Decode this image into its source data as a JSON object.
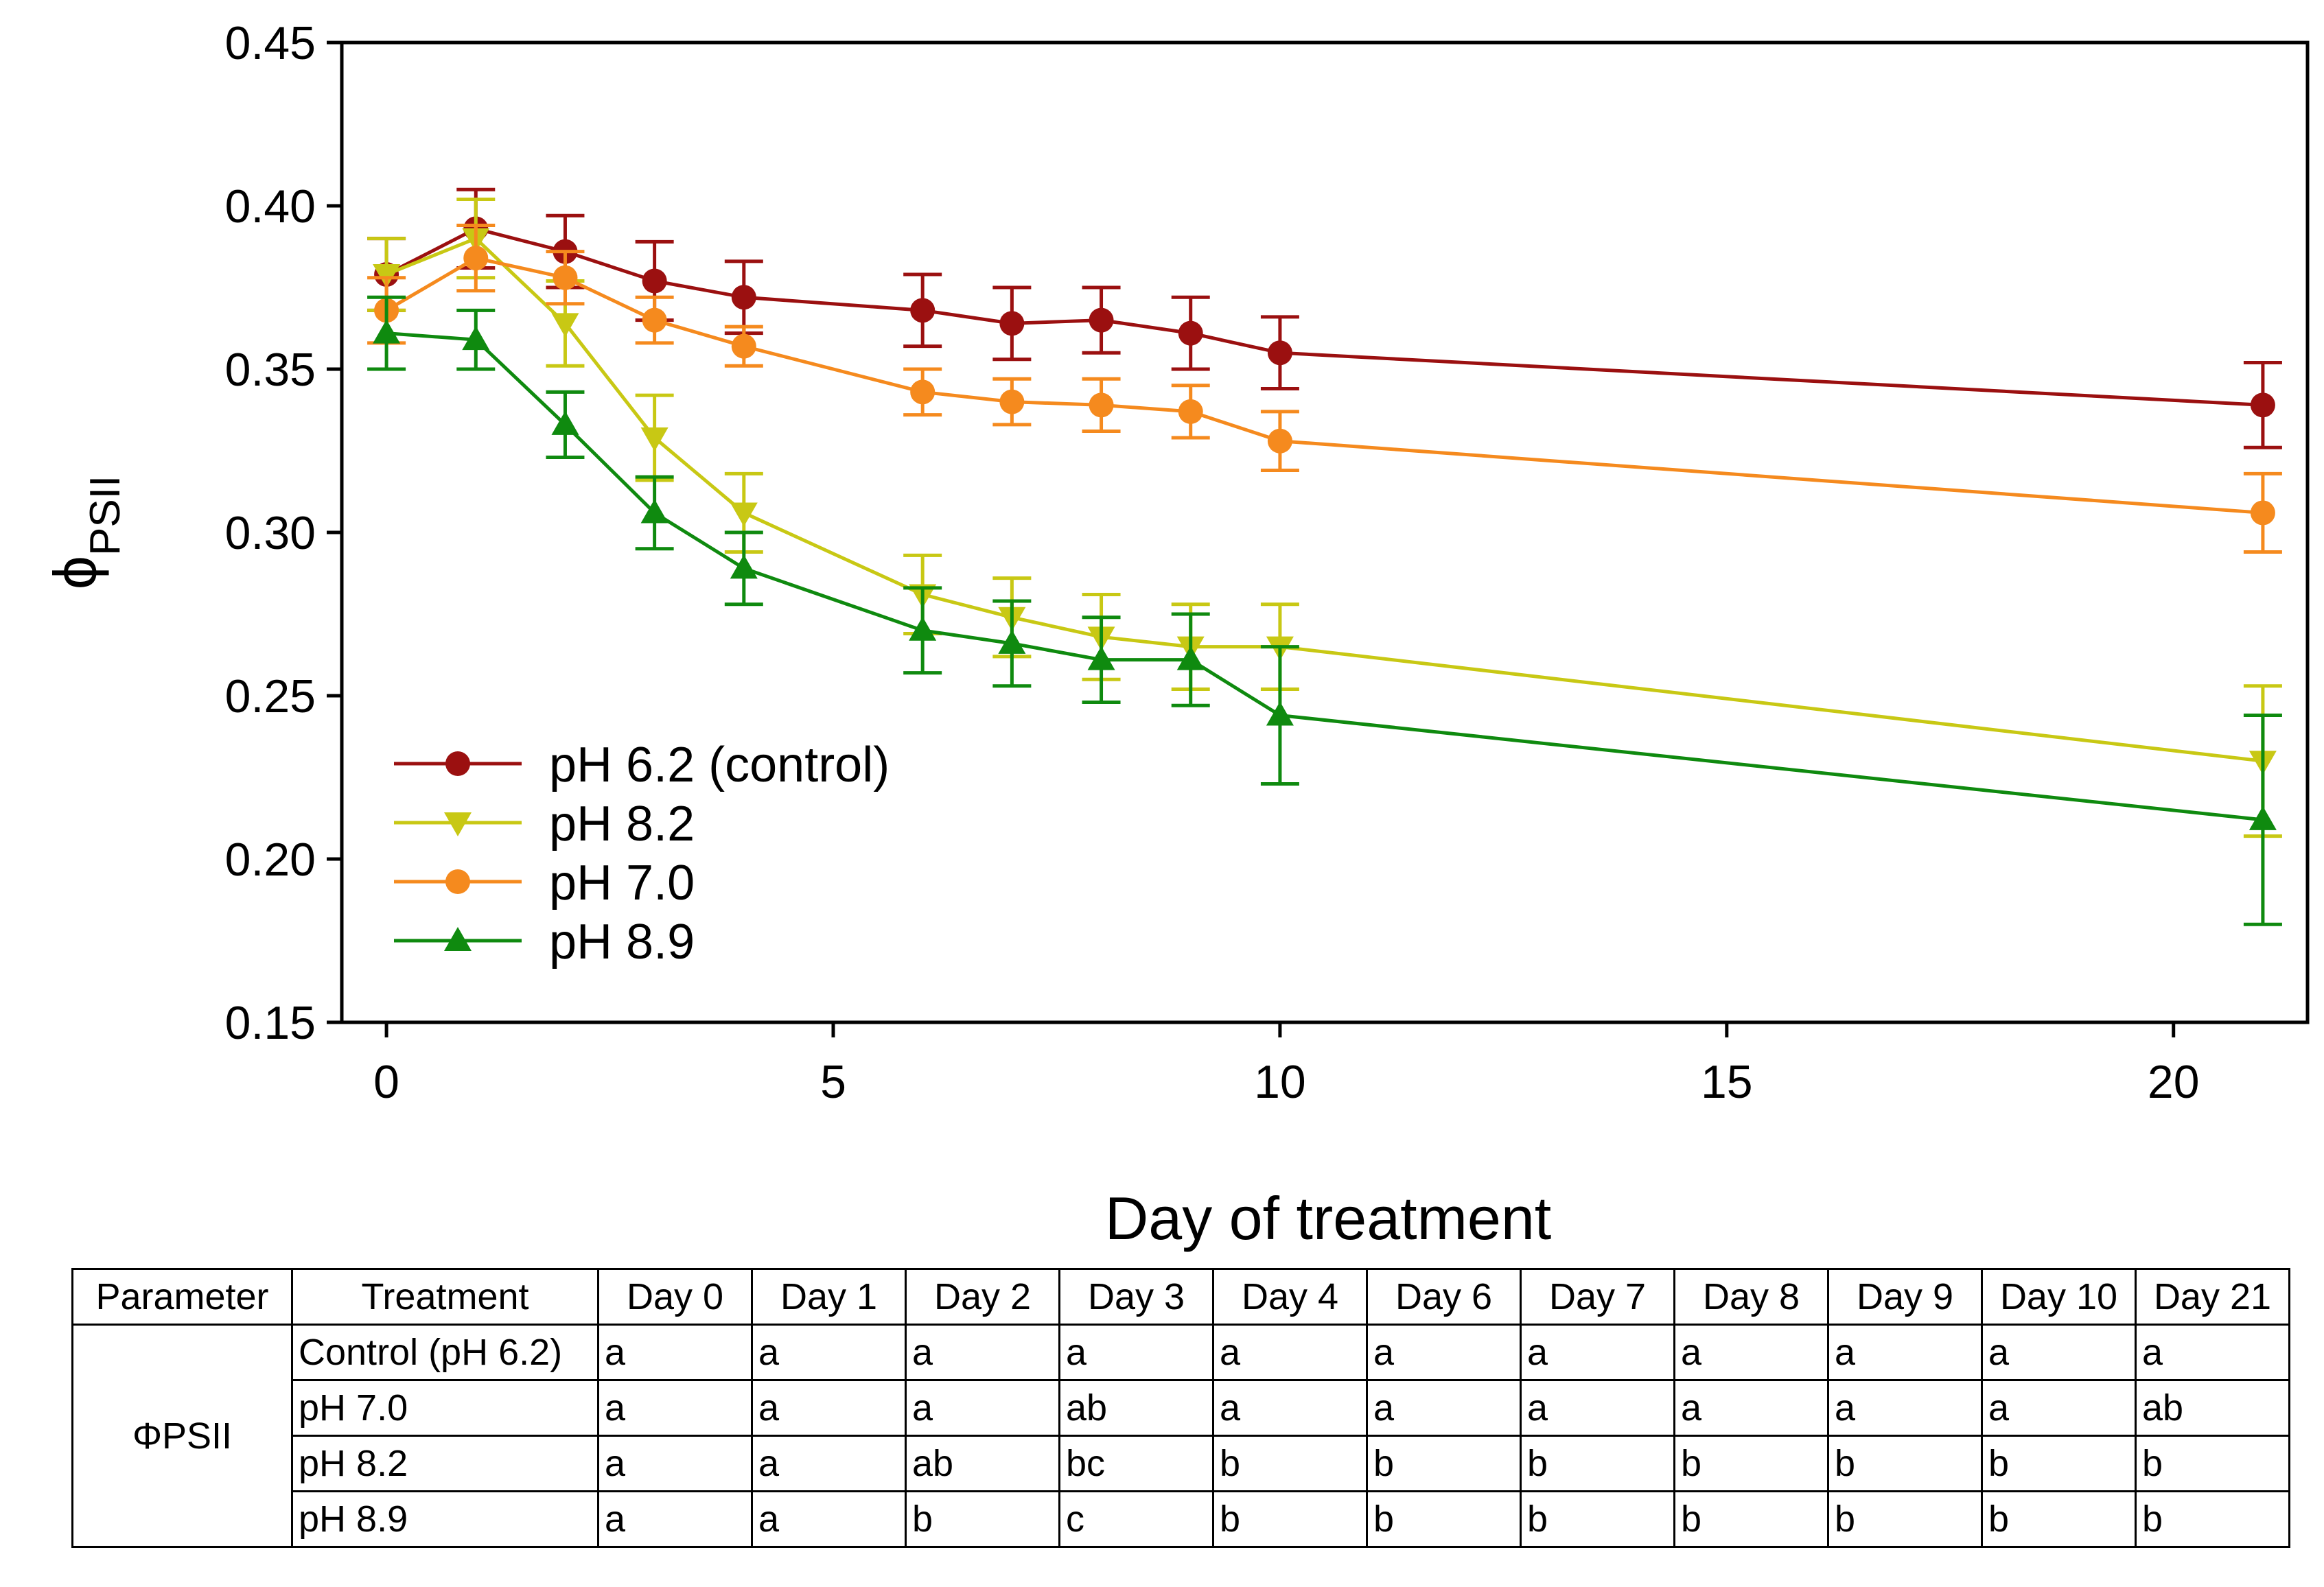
{
  "chart_data": {
    "type": "line",
    "title": "",
    "xlabel": "Day of treatment",
    "ylabel": "ϕ",
    "ylabel_sub": "PSII",
    "xlim": [
      -0.5,
      21.5
    ],
    "ylim": [
      0.15,
      0.45
    ],
    "xticks": [
      0,
      5,
      10,
      15,
      20
    ],
    "xtick_labels": [
      "0",
      "5",
      "10",
      "15",
      "20"
    ],
    "yticks": [
      0.15,
      0.2,
      0.25,
      0.3,
      0.35,
      0.4,
      0.45
    ],
    "ytick_labels": [
      "0.15",
      "0.20",
      "0.25",
      "0.30",
      "0.35",
      "0.40",
      "0.45"
    ],
    "legend_position": "lower-left",
    "x": [
      0,
      1,
      2,
      3,
      4,
      6,
      7,
      8,
      9,
      10,
      21
    ],
    "series": [
      {
        "name": "pH 6.2 (control)",
        "color": "#9b1010",
        "marker": "circle",
        "values": [
          0.379,
          0.393,
          0.386,
          0.377,
          0.372,
          0.368,
          0.364,
          0.365,
          0.361,
          0.355,
          0.339
        ],
        "errors": [
          0.011,
          0.012,
          0.011,
          0.012,
          0.011,
          0.011,
          0.011,
          0.01,
          0.011,
          0.011,
          0.013
        ]
      },
      {
        "name": "pH 8.2",
        "color": "#c8c814",
        "marker": "triangle-down",
        "values": [
          0.379,
          0.39,
          0.364,
          0.329,
          0.306,
          0.281,
          0.274,
          0.268,
          0.265,
          0.265,
          0.23
        ],
        "errors": [
          0.011,
          0.012,
          0.013,
          0.013,
          0.012,
          0.012,
          0.012,
          0.013,
          0.013,
          0.013,
          0.023
        ]
      },
      {
        "name": "pH 7.0",
        "color": "#f58a1e",
        "marker": "circle",
        "values": [
          0.368,
          0.384,
          0.378,
          0.365,
          0.357,
          0.343,
          0.34,
          0.339,
          0.337,
          0.328,
          0.306
        ],
        "errors": [
          0.01,
          0.01,
          0.008,
          0.007,
          0.006,
          0.007,
          0.007,
          0.008,
          0.008,
          0.009,
          0.012
        ]
      },
      {
        "name": "pH 8.9",
        "color": "#0f8a0f",
        "marker": "triangle-up",
        "values": [
          0.361,
          0.359,
          0.333,
          0.306,
          0.289,
          0.27,
          0.266,
          0.261,
          0.261,
          0.244,
          0.212
        ],
        "errors": [
          0.011,
          0.009,
          0.01,
          0.011,
          0.011,
          0.013,
          0.013,
          0.013,
          0.014,
          0.021,
          0.032
        ]
      }
    ],
    "legend_order": [
      0,
      1,
      2,
      3
    ]
  },
  "table": {
    "headers": [
      "Parameter",
      "Treatment",
      "Day 0",
      "Day 1",
      "Day 2",
      "Day 3",
      "Day 4",
      "Day 6",
      "Day 7",
      "Day 8",
      "Day 9",
      "Day 10",
      "Day 21"
    ],
    "parameter": "ΦPSII",
    "rows": [
      {
        "treatment": "Control (pH 6.2)",
        "values": [
          "a",
          "a",
          "a",
          "a",
          "a",
          "a",
          "a",
          "a",
          "a",
          "a",
          "a"
        ]
      },
      {
        "treatment": "pH 7.0",
        "values": [
          "a",
          "a",
          "a",
          "ab",
          "a",
          "a",
          "a",
          "a",
          "a",
          "a",
          "ab"
        ]
      },
      {
        "treatment": "pH 8.2",
        "values": [
          "a",
          "a",
          "ab",
          "bc",
          "b",
          "b",
          "b",
          "b",
          "b",
          "b",
          "b"
        ]
      },
      {
        "treatment": "pH 8.9",
        "values": [
          "a",
          "a",
          "b",
          "c",
          "b",
          "b",
          "b",
          "b",
          "b",
          "b",
          "b"
        ]
      }
    ]
  }
}
